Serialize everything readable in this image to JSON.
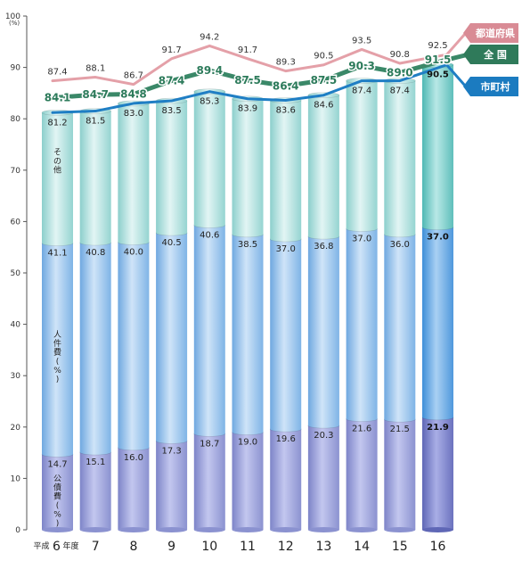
{
  "chart_data": {
    "type": "bar",
    "ylim": [
      0,
      100
    ],
    "y_ticks": [
      "0",
      "10",
      "20",
      "30",
      "40",
      "50",
      "60",
      "70",
      "80",
      "90",
      "100"
    ],
    "y_unit": "(%)",
    "x_first_prefix": "平成",
    "x_first_suffix": "年度",
    "categories": [
      "6",
      "7",
      "8",
      "9",
      "10",
      "11",
      "12",
      "13",
      "14",
      "15",
      "16"
    ],
    "stack_series": [
      {
        "name": "公債費(%)",
        "label": "公債費(%)",
        "color": "#a3a8dd",
        "values": [
          14.7,
          15.1,
          16.0,
          17.3,
          18.7,
          19.0,
          19.6,
          20.3,
          21.6,
          21.5,
          21.9
        ],
        "labels": [
          "14.7",
          "15.1",
          "16.0",
          "17.3",
          "18.7",
          "19.0",
          "19.6",
          "20.3",
          "21.6",
          "21.5",
          "21.9"
        ]
      },
      {
        "name": "人件費(%)",
        "label": "人件費(%)",
        "color": "#9fc6ee",
        "values": [
          41.1,
          40.8,
          40.0,
          40.5,
          40.6,
          38.5,
          37.0,
          36.8,
          37.0,
          36.0,
          37.0
        ],
        "labels": [
          "41.1",
          "40.8",
          "40.0",
          "40.5",
          "40.6",
          "38.5",
          "37.0",
          "36.8",
          "37.0",
          "36.0",
          "37.0"
        ]
      },
      {
        "name": "その他",
        "label": "その他",
        "color": "#b9e4e2",
        "values": [
          25.4,
          25.6,
          27.0,
          25.7,
          26.0,
          26.4,
          27.0,
          27.5,
          28.8,
          29.9,
          31.6
        ],
        "labels": [
          "",
          "",
          "",
          "",
          "",
          "",
          "",
          "",
          "",
          "",
          ""
        ]
      }
    ],
    "totals_municipal": [
      81.2,
      81.5,
      83.0,
      83.5,
      85.3,
      83.9,
      83.6,
      84.6,
      87.4,
      87.4,
      90.5
    ],
    "totals_municipal_labels": [
      "81.2",
      "81.5",
      "83.0",
      "83.5",
      "85.3",
      "83.9",
      "83.6",
      "84.6",
      "87.4",
      "87.4",
      "90.5"
    ],
    "line_series": [
      {
        "name": "都道府県",
        "color": "#e4a0a8",
        "values": [
          87.4,
          88.1,
          86.7,
          91.7,
          94.2,
          91.7,
          89.3,
          90.5,
          93.5,
          90.8,
          92.5
        ],
        "labels": [
          "87.4",
          "88.1",
          "86.7",
          "91.7",
          "94.2",
          "91.7",
          "89.3",
          "90.5",
          "93.5",
          "90.8",
          "92.5"
        ]
      },
      {
        "name": "全 国",
        "color": "#3a8868",
        "values": [
          84.1,
          84.7,
          84.8,
          87.4,
          89.4,
          87.5,
          86.4,
          87.5,
          90.3,
          89.0,
          91.5
        ],
        "labels": [
          "84.1",
          "84.7",
          "84.8",
          "87.4",
          "89.4",
          "87.5",
          "86.4",
          "87.5",
          "90.3",
          "89.0",
          "91.5"
        ]
      },
      {
        "name": "市町村",
        "color": "#1f7ec4",
        "values": [
          81.2,
          81.5,
          83.0,
          83.5,
          85.3,
          83.9,
          83.6,
          84.6,
          87.4,
          87.4,
          90.5
        ]
      }
    ],
    "legend": [
      {
        "name": "都道府県",
        "color": "#d98b95"
      },
      {
        "name": "全 国",
        "color": "#2f7a5a"
      },
      {
        "name": "市町村",
        "color": "#1b7bc0"
      }
    ]
  }
}
